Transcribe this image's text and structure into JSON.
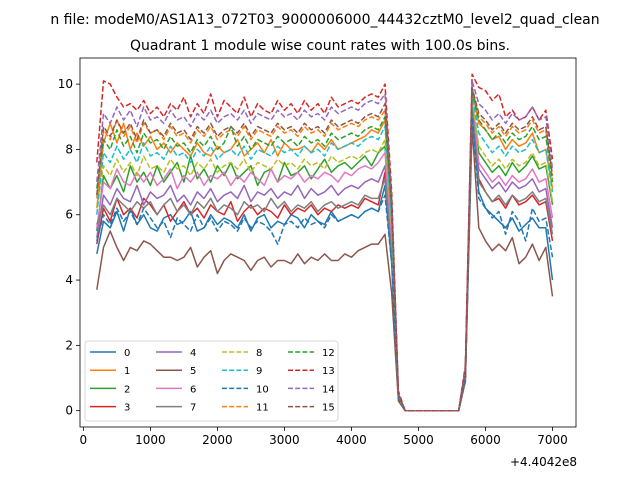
{
  "figure": {
    "suptitle": "n file: modeM0/AS1A13_072T03_9000006000_44432cztM0_level2_quad_clean",
    "offset_label": "+4.4042e8"
  },
  "chart_data": {
    "type": "line",
    "title": "Quadrant 1 module wise count rates with 100.0s bins.",
    "xlabel": "",
    "ylabel": "",
    "xlim": [
      -50,
      7350
    ],
    "ylim": [
      -0.5,
      10.8
    ],
    "x_ticks": [
      0,
      1000,
      2000,
      3000,
      4000,
      5000,
      6000,
      7000
    ],
    "x_tick_labels": [
      "0",
      "1000",
      "2000",
      "3000",
      "4000",
      "5000",
      "6000",
      "7000"
    ],
    "y_ticks": [
      0,
      2,
      4,
      6,
      8,
      10
    ],
    "y_tick_labels": [
      "0",
      "2",
      "4",
      "6",
      "8",
      "10"
    ],
    "x_offset": 440420000,
    "grid": false,
    "legend": {
      "placement": "lower-left",
      "ncol": 4
    },
    "x": [
      200,
      300,
      400,
      500,
      600,
      700,
      800,
      900,
      1000,
      1100,
      1200,
      1300,
      1400,
      1500,
      1600,
      1700,
      1800,
      1900,
      2000,
      2100,
      2200,
      2300,
      2400,
      2500,
      2600,
      2700,
      2800,
      2900,
      3000,
      3100,
      3200,
      3300,
      3400,
      3500,
      3600,
      3700,
      3800,
      3900,
      4000,
      4100,
      4200,
      4300,
      4400,
      4500,
      4600,
      4700,
      4800,
      4900,
      5000,
      5100,
      5200,
      5300,
      5400,
      5500,
      5600,
      5700,
      5800,
      5900,
      6000,
      6100,
      6200,
      6300,
      6400,
      6500,
      6600,
      6700,
      6800,
      6900,
      7000
    ],
    "series": [
      {
        "name": "0",
        "color": "#1f77b4",
        "dash": "solid",
        "values": [
          4.8,
          5.8,
          5.6,
          6.1,
          5.5,
          6.2,
          5.7,
          6.0,
          5.6,
          5.5,
          5.9,
          6.0,
          5.7,
          5.8,
          6.1,
          5.5,
          5.6,
          6.0,
          5.7,
          5.9,
          5.8,
          5.6,
          6.0,
          5.5,
          5.9,
          6.0,
          5.6,
          5.8,
          5.7,
          6.0,
          5.9,
          5.6,
          6.0,
          5.8,
          5.7,
          6.1,
          5.8,
          5.9,
          6.0,
          5.9,
          6.1,
          6.2,
          6.1,
          6.9,
          4.5,
          0.4,
          0,
          0,
          0,
          0,
          0,
          0,
          0,
          0,
          0,
          1.0,
          9.2,
          6.7,
          6.2,
          6.0,
          5.8,
          5.6,
          5.9,
          5.5,
          5.7,
          5.9,
          5.6,
          5.6,
          4.0
        ]
      },
      {
        "name": "1",
        "color": "#ff7f0e",
        "dash": "solid",
        "values": [
          6.2,
          8.2,
          8.8,
          8.2,
          8.8,
          8.0,
          8.5,
          8.1,
          8.4,
          8.0,
          8.2,
          7.9,
          8.2,
          8.0,
          7.8,
          8.2,
          7.9,
          7.8,
          8.1,
          7.9,
          8.0,
          8.3,
          7.8,
          8.0,
          8.2,
          7.9,
          8.3,
          7.8,
          8.2,
          8.0,
          8.0,
          8.1,
          7.9,
          8.2,
          8.0,
          8.3,
          8.0,
          8.1,
          8.2,
          8.3,
          8.4,
          8.6,
          8.5,
          8.9,
          6.0,
          0.5,
          0,
          0,
          0,
          0,
          0,
          0,
          0,
          0,
          0,
          1.3,
          9.8,
          8.8,
          8.6,
          8.3,
          8.4,
          8.0,
          8.3,
          8.1,
          8.2,
          8.5,
          7.9,
          8.0,
          6.8
        ]
      },
      {
        "name": "2",
        "color": "#2ca02c",
        "dash": "solid",
        "values": [
          5.5,
          7.2,
          6.8,
          7.2,
          6.7,
          7.5,
          7.0,
          7.3,
          6.9,
          7.5,
          7.0,
          7.3,
          7.6,
          7.0,
          7.8,
          7.1,
          7.4,
          7.0,
          7.5,
          7.2,
          7.6,
          7.1,
          7.3,
          7.5,
          6.9,
          7.3,
          7.4,
          7.0,
          7.6,
          7.2,
          7.3,
          7.5,
          7.1,
          7.4,
          7.7,
          7.3,
          7.5,
          7.6,
          7.4,
          7.6,
          7.8,
          7.5,
          7.9,
          8.1,
          5.4,
          0.4,
          0,
          0,
          0,
          0,
          0,
          0,
          0,
          0,
          0,
          1.2,
          9.5,
          7.9,
          7.6,
          7.3,
          7.5,
          7.2,
          7.6,
          7.3,
          7.5,
          7.8,
          7.4,
          7.5,
          6.3
        ]
      },
      {
        "name": "3",
        "color": "#d62728",
        "dash": "solid",
        "values": [
          5.1,
          6.2,
          5.8,
          6.5,
          6.0,
          6.2,
          5.9,
          6.5,
          6.3,
          6.0,
          6.3,
          5.8,
          6.1,
          6.4,
          6.0,
          6.2,
          5.9,
          6.3,
          6.1,
          6.0,
          6.4,
          5.8,
          6.1,
          6.3,
          6.0,
          6.2,
          6.1,
          5.9,
          6.3,
          6.0,
          6.2,
          6.1,
          6.3,
          6.0,
          6.2,
          6.1,
          6.3,
          6.2,
          6.3,
          6.2,
          6.5,
          6.4,
          6.3,
          7.3,
          4.9,
          0.4,
          0,
          0,
          0,
          0,
          0,
          0,
          0,
          0,
          0,
          1.0,
          9.3,
          7.1,
          6.7,
          6.4,
          6.5,
          6.2,
          6.6,
          6.3,
          6.4,
          6.6,
          6.3,
          6.4,
          5.2
        ]
      },
      {
        "name": "4",
        "color": "#9467bd",
        "dash": "solid",
        "values": [
          5.3,
          6.6,
          6.3,
          6.8,
          6.5,
          6.4,
          6.9,
          6.3,
          6.7,
          6.5,
          6.6,
          6.9,
          6.4,
          6.6,
          6.3,
          6.7,
          6.5,
          6.8,
          6.4,
          6.6,
          6.7,
          6.5,
          6.9,
          6.4,
          6.7,
          6.6,
          6.8,
          6.5,
          6.7,
          6.6,
          6.9,
          6.5,
          6.8,
          6.6,
          6.7,
          6.9,
          6.6,
          6.8,
          6.9,
          6.8,
          7.0,
          7.1,
          7.0,
          7.5,
          5.0,
          0.4,
          0,
          0,
          0,
          0,
          0,
          0,
          0,
          0,
          0,
          1.1,
          9.4,
          7.4,
          7.1,
          6.8,
          7.0,
          6.7,
          7.0,
          6.8,
          6.9,
          7.1,
          6.7,
          6.8,
          5.6
        ]
      },
      {
        "name": "5",
        "color": "#8c564b",
        "dash": "solid",
        "values": [
          3.7,
          5.0,
          5.5,
          5.0,
          4.6,
          5.0,
          4.9,
          5.2,
          5.1,
          4.9,
          4.7,
          4.7,
          4.6,
          4.7,
          5.0,
          4.4,
          4.7,
          4.9,
          4.2,
          4.6,
          4.8,
          4.7,
          4.6,
          4.3,
          4.6,
          4.7,
          4.4,
          4.6,
          4.6,
          4.5,
          4.8,
          4.5,
          4.7,
          4.6,
          4.8,
          4.6,
          4.6,
          4.8,
          4.7,
          4.9,
          5.0,
          5.1,
          5.1,
          5.4,
          3.6,
          0.3,
          0,
          0,
          0,
          0,
          0,
          0,
          0,
          0,
          0,
          0.9,
          8.7,
          5.6,
          5.2,
          4.9,
          5.1,
          4.9,
          5.3,
          4.5,
          4.7,
          5.1,
          4.6,
          5.0,
          3.5
        ]
      },
      {
        "name": "6",
        "color": "#e377c2",
        "dash": "solid",
        "values": [
          5.6,
          7.0,
          6.8,
          7.4,
          7.0,
          6.9,
          7.3,
          7.0,
          7.3,
          6.9,
          7.1,
          7.4,
          6.8,
          7.2,
          7.0,
          7.3,
          6.9,
          7.2,
          7.1,
          7.3,
          6.9,
          7.2,
          7.0,
          7.3,
          7.1,
          6.9,
          7.4,
          7.0,
          7.2,
          7.1,
          7.3,
          7.0,
          7.2,
          7.1,
          7.3,
          7.2,
          7.0,
          7.3,
          7.2,
          7.4,
          7.5,
          7.4,
          7.6,
          7.9,
          5.3,
          0.4,
          0,
          0,
          0,
          0,
          0,
          0,
          0,
          0,
          0,
          1.1,
          9.5,
          7.6,
          7.3,
          7.0,
          7.2,
          6.9,
          7.2,
          7.0,
          7.1,
          7.4,
          7.0,
          7.1,
          5.9
        ]
      },
      {
        "name": "7",
        "color": "#7f7f7f",
        "dash": "solid",
        "values": [
          5.7,
          6.3,
          6.0,
          6.5,
          6.3,
          6.1,
          6.4,
          6.2,
          6.4,
          6.0,
          6.3,
          6.5,
          6.1,
          6.3,
          6.0,
          6.4,
          6.2,
          6.5,
          6.1,
          6.3,
          6.2,
          6.0,
          6.4,
          6.2,
          6.3,
          6.1,
          6.5,
          6.2,
          6.4,
          6.1,
          6.3,
          6.2,
          6.4,
          6.1,
          6.3,
          6.4,
          6.2,
          6.3,
          6.4,
          6.3,
          6.6,
          6.5,
          6.5,
          7.1,
          4.8,
          0.4,
          0,
          0,
          0,
          0,
          0,
          0,
          0,
          0,
          0,
          1.0,
          9.3,
          7.0,
          6.7,
          6.4,
          6.6,
          6.3,
          6.6,
          6.4,
          6.5,
          6.7,
          6.4,
          6.5,
          5.4
        ]
      },
      {
        "name": "8",
        "color": "#bcbd22",
        "dash": "dashed",
        "values": [
          6.2,
          7.5,
          7.2,
          7.7,
          7.3,
          7.6,
          7.2,
          7.8,
          7.4,
          7.5,
          7.3,
          7.7,
          7.4,
          7.5,
          7.2,
          7.6,
          7.4,
          7.7,
          7.3,
          7.5,
          7.6,
          7.4,
          7.7,
          7.3,
          7.6,
          7.5,
          7.4,
          7.7,
          7.5,
          7.6,
          7.4,
          7.7,
          7.5,
          7.6,
          7.4,
          7.8,
          7.6,
          7.7,
          7.8,
          7.7,
          7.9,
          8.0,
          7.9,
          8.3,
          5.6,
          0.5,
          0,
          0,
          0,
          0,
          0,
          0,
          0,
          0,
          0,
          1.2,
          9.6,
          8.1,
          7.8,
          7.5,
          7.7,
          7.4,
          7.7,
          7.5,
          7.6,
          7.9,
          7.5,
          7.6,
          6.4
        ]
      },
      {
        "name": "9",
        "color": "#17becf",
        "dash": "dashed",
        "values": [
          6.0,
          7.9,
          7.6,
          8.1,
          7.7,
          8.0,
          7.6,
          8.2,
          7.8,
          7.9,
          7.7,
          8.1,
          7.8,
          7.9,
          7.6,
          8.0,
          7.8,
          8.1,
          7.7,
          7.9,
          8.0,
          7.8,
          8.1,
          7.7,
          8.0,
          7.9,
          7.8,
          8.1,
          7.9,
          8.0,
          7.8,
          8.1,
          7.9,
          8.0,
          7.8,
          8.2,
          8.0,
          8.1,
          8.2,
          8.1,
          8.3,
          8.4,
          8.3,
          8.7,
          5.8,
          0.5,
          0,
          0,
          0,
          0,
          0,
          0,
          0,
          0,
          0,
          1.2,
          9.7,
          8.5,
          8.2,
          7.9,
          8.1,
          7.8,
          8.1,
          7.9,
          8.0,
          8.3,
          7.9,
          8.0,
          6.7
        ]
      },
      {
        "name": "10",
        "color": "#1f77b4",
        "dash": "dashed",
        "values": [
          5.2,
          6.0,
          5.7,
          6.2,
          5.8,
          6.1,
          5.7,
          6.2,
          5.9,
          5.6,
          5.8,
          5.3,
          5.9,
          5.7,
          5.5,
          6.0,
          5.6,
          5.9,
          5.5,
          5.8,
          5.7,
          5.5,
          5.9,
          5.6,
          5.8,
          5.7,
          5.5,
          5.1,
          5.7,
          5.8,
          5.6,
          5.9,
          5.7,
          5.8,
          5.6,
          6.0,
          5.8,
          5.9,
          6.0,
          5.9,
          6.1,
          6.2,
          6.1,
          6.6,
          4.5,
          0.4,
          0,
          0,
          0,
          0,
          0,
          0,
          0,
          0,
          0,
          1.0,
          9.1,
          6.5,
          6.2,
          5.9,
          6.1,
          5.4,
          6.1,
          5.8,
          5.2,
          6.2,
          5.8,
          5.9,
          4.7
        ]
      },
      {
        "name": "11",
        "color": "#ff7f0e",
        "dash": "dashed",
        "values": [
          6.5,
          8.6,
          8.3,
          8.9,
          8.4,
          8.7,
          8.2,
          8.8,
          8.5,
          8.6,
          8.3,
          8.7,
          8.4,
          8.5,
          8.2,
          8.6,
          8.4,
          8.7,
          8.3,
          8.5,
          8.6,
          8.4,
          8.7,
          8.3,
          8.6,
          8.5,
          8.4,
          8.7,
          8.5,
          8.6,
          8.4,
          8.7,
          8.5,
          8.6,
          8.4,
          8.8,
          8.6,
          8.7,
          8.8,
          8.7,
          8.9,
          9.0,
          8.9,
          9.2,
          6.3,
          0.5,
          0,
          0,
          0,
          0,
          0,
          0,
          0,
          0,
          0,
          1.3,
          9.9,
          9.0,
          8.8,
          8.5,
          8.7,
          8.4,
          8.7,
          8.5,
          8.6,
          8.9,
          8.5,
          8.6,
          7.1
        ]
      },
      {
        "name": "12",
        "color": "#2ca02c",
        "dash": "dashed",
        "values": [
          6.8,
          8.3,
          8.0,
          8.6,
          8.1,
          8.4,
          7.9,
          8.5,
          8.2,
          8.3,
          8.0,
          8.4,
          8.1,
          8.2,
          7.9,
          8.3,
          8.1,
          8.4,
          8.0,
          8.2,
          8.7,
          8.1,
          8.4,
          8.0,
          8.3,
          8.2,
          8.1,
          8.4,
          8.2,
          8.3,
          8.1,
          8.4,
          8.2,
          8.3,
          8.1,
          8.5,
          8.3,
          8.4,
          8.5,
          8.4,
          8.6,
          8.7,
          8.6,
          9.0,
          6.1,
          0.5,
          0,
          0,
          0,
          0,
          0,
          0,
          0,
          0,
          0,
          1.3,
          9.8,
          8.9,
          8.6,
          8.3,
          8.5,
          8.2,
          8.5,
          8.3,
          8.4,
          8.7,
          8.3,
          8.4,
          7.0
        ]
      },
      {
        "name": "13",
        "color": "#d62728",
        "dash": "dashed",
        "values": [
          7.6,
          10.1,
          10.0,
          9.6,
          9.3,
          9.4,
          9.2,
          9.5,
          9.1,
          9.3,
          9.0,
          9.4,
          9.2,
          9.6,
          9.0,
          9.4,
          9.1,
          9.7,
          9.0,
          9.5,
          9.3,
          9.1,
          9.6,
          9.0,
          9.4,
          9.2,
          9.1,
          9.5,
          9.2,
          9.4,
          9.1,
          9.5,
          9.2,
          9.4,
          9.1,
          9.6,
          9.3,
          9.4,
          9.5,
          9.4,
          9.6,
          9.7,
          9.6,
          10.0,
          6.7,
          0.6,
          0,
          0,
          0,
          0,
          0,
          0,
          0,
          0,
          0,
          1.4,
          10.3,
          9.9,
          9.8,
          9.5,
          9.7,
          9.0,
          9.2,
          8.9,
          9.0,
          9.3,
          8.9,
          9.2,
          7.7
        ]
      },
      {
        "name": "14",
        "color": "#9467bd",
        "dash": "dashed",
        "values": [
          7.0,
          9.1,
          8.8,
          9.3,
          8.9,
          9.2,
          8.7,
          9.3,
          8.9,
          9.0,
          8.8,
          9.2,
          8.9,
          9.0,
          8.7,
          9.1,
          8.9,
          9.2,
          8.8,
          9.0,
          9.1,
          8.9,
          9.2,
          8.8,
          9.1,
          9.0,
          8.9,
          9.2,
          9.0,
          9.1,
          8.9,
          9.2,
          9.0,
          9.1,
          8.9,
          9.3,
          9.1,
          9.2,
          9.3,
          9.2,
          9.4,
          9.5,
          9.4,
          9.7,
          6.5,
          0.5,
          0,
          0,
          0,
          0,
          0,
          0,
          0,
          0,
          0,
          1.3,
          10.1,
          9.4,
          9.2,
          8.9,
          9.1,
          8.8,
          9.1,
          8.9,
          9.0,
          9.3,
          8.9,
          9.0,
          7.4
        ]
      },
      {
        "name": "15",
        "color": "#8c564b",
        "dash": "dashed",
        "values": [
          6.6,
          8.7,
          8.4,
          8.9,
          8.5,
          8.8,
          8.3,
          8.9,
          8.5,
          8.6,
          8.4,
          8.8,
          8.5,
          8.6,
          8.3,
          8.7,
          8.5,
          8.8,
          8.4,
          8.6,
          8.7,
          8.5,
          8.8,
          8.4,
          8.7,
          8.6,
          8.5,
          8.8,
          8.6,
          8.7,
          8.5,
          8.8,
          8.6,
          8.7,
          8.5,
          8.9,
          8.7,
          8.8,
          8.9,
          8.8,
          9.0,
          9.1,
          9.0,
          9.4,
          6.2,
          0.5,
          0,
          0,
          0,
          0,
          0,
          0,
          0,
          0,
          0,
          1.2,
          9.9,
          9.1,
          8.9,
          8.6,
          8.8,
          8.5,
          8.8,
          8.6,
          8.7,
          9.0,
          8.6,
          8.7,
          7.2
        ]
      }
    ]
  }
}
